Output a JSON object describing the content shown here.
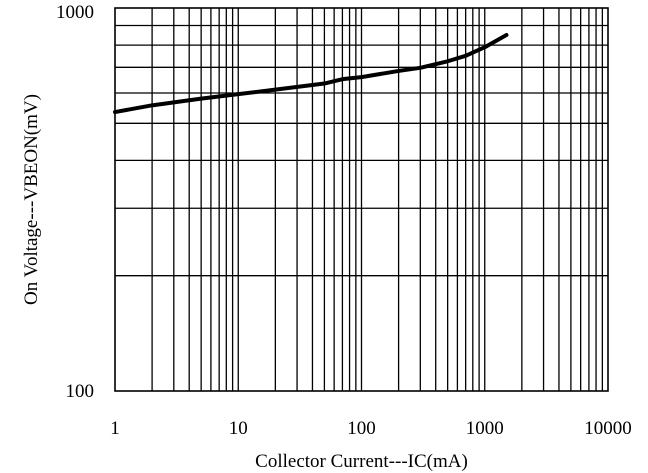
{
  "chart_data": {
    "type": "line",
    "xlabel": "Collector Current---IC(mA)",
    "ylabel": "On Voltage---VBEON(mV)",
    "x_scale": "log",
    "y_scale": "log",
    "xlim": [
      1,
      10000
    ],
    "ylim": [
      100,
      1000
    ],
    "x_ticks": [
      1,
      10,
      100,
      1000,
      10000
    ],
    "x_tick_labels": [
      "1",
      "10",
      "100",
      "1000",
      "10000"
    ],
    "y_ticks": [
      100,
      1000
    ],
    "y_tick_labels": [
      "100",
      "1000"
    ],
    "grid": true,
    "series": [
      {
        "x": [
          1,
          2,
          5,
          10,
          20,
          50,
          70,
          100,
          200,
          300,
          500,
          700,
          1000,
          1500
        ],
        "y": [
          535,
          557,
          580,
          596,
          612,
          635,
          652,
          660,
          685,
          698,
          726,
          750,
          790,
          850
        ]
      }
    ]
  }
}
